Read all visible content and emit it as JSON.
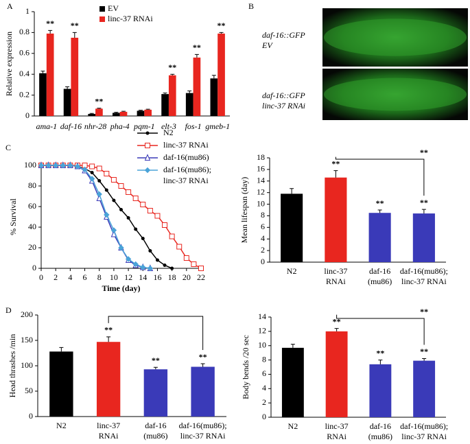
{
  "chart_data": [
    {
      "type": "bar",
      "panel": "A",
      "ylabel": "Relative expression",
      "categories": [
        "ama-1",
        "daf-16",
        "nhr-28",
        "pha-4",
        "pqm-1",
        "elt-3",
        "fos-1",
        "gmeb-1"
      ],
      "series": [
        {
          "name": "EV",
          "color": "#000000",
          "values": [
            0.41,
            0.26,
            0.02,
            0.03,
            0.05,
            0.21,
            0.22,
            0.36
          ],
          "errors": [
            0.02,
            0.02,
            0.005,
            0.005,
            0.005,
            0.01,
            0.02,
            0.03
          ],
          "significance": [
            null,
            null,
            null,
            null,
            null,
            null,
            null,
            null
          ]
        },
        {
          "name": "linc-37 RNAi",
          "color": "#e8261f",
          "values": [
            0.79,
            0.75,
            0.07,
            0.04,
            0.06,
            0.39,
            0.56,
            0.79
          ],
          "errors": [
            0.03,
            0.05,
            0.005,
            0.005,
            0.005,
            0.01,
            0.03,
            0.01
          ],
          "significance": [
            "**",
            "**",
            "**",
            null,
            null,
            "**",
            "**",
            "**"
          ]
        }
      ],
      "ylim": [
        0,
        1
      ],
      "yticks": [
        0,
        0.2,
        0.4,
        0.6,
        0.8,
        1
      ]
    },
    {
      "type": "image",
      "panel": "B",
      "images": [
        {
          "label": [
            "daf-16::GFP",
            "EV"
          ]
        },
        {
          "label": [
            "daf-16::GFP",
            "linc-37 RNAi"
          ]
        }
      ]
    },
    {
      "type": "line",
      "panel": "C",
      "xlabel": "Time (day)",
      "ylabel": "% Survival",
      "x": [
        0,
        1,
        2,
        3,
        4,
        5,
        6,
        7,
        8,
        9,
        10,
        11,
        12,
        13,
        14,
        15,
        16,
        17,
        18,
        19,
        20,
        21,
        22
      ],
      "series": [
        {
          "name": [
            "N2"
          ],
          "color": "#000000",
          "marker": "circle",
          "values": [
            100,
            100,
            100,
            100,
            100,
            99,
            97,
            93,
            85,
            76,
            66,
            57,
            49,
            38,
            29,
            17,
            8,
            3,
            0,
            null,
            null,
            null,
            null
          ]
        },
        {
          "name": [
            "linc-37 RNAi"
          ],
          "color": "#e8261f",
          "marker": "square",
          "values": [
            100,
            100,
            100,
            100,
            100,
            100,
            100,
            99,
            97,
            92,
            86,
            80,
            74,
            68,
            62,
            56,
            51,
            42,
            31,
            21,
            10,
            4,
            0
          ]
        },
        {
          "name": [
            "daf-16(mu86)"
          ],
          "color": "#3a3ab8",
          "marker": "triangle",
          "values": [
            100,
            100,
            100,
            100,
            100,
            99,
            95,
            85,
            68,
            50,
            33,
            20,
            8,
            3,
            1,
            0,
            null,
            null,
            null,
            null,
            null,
            null,
            null
          ]
        },
        {
          "name": [
            "daf-16(mu86);",
            "linc-37 RNAi"
          ],
          "color": "#4aa3d8",
          "marker": "diamond",
          "values": [
            100,
            100,
            100,
            100,
            100,
            99,
            96,
            87,
            72,
            52,
            37,
            20,
            9,
            4,
            1,
            0,
            null,
            null,
            null,
            null,
            null,
            null,
            null
          ]
        }
      ],
      "xlim": [
        0,
        22
      ],
      "xticks": [
        0,
        2,
        4,
        6,
        8,
        10,
        12,
        14,
        16,
        18,
        20,
        22
      ],
      "ylim": [
        0,
        100
      ],
      "yticks": [
        0,
        20,
        40,
        60,
        80,
        100
      ]
    },
    {
      "type": "bar",
      "ylabel": "Mean lifespan (day)",
      "categories": [
        [
          "N2"
        ],
        [
          "linc-37",
          "RNAi"
        ],
        [
          "daf-16",
          "(mu86)"
        ],
        [
          "daf-16(mu86);",
          "linc-37 RNAi"
        ]
      ],
      "values": [
        11.8,
        14.6,
        8.5,
        8.4
      ],
      "errors": [
        0.9,
        1.2,
        0.5,
        0.7
      ],
      "colors": [
        "#000000",
        "#e8261f",
        "#3a3ab8",
        "#3a3ab8"
      ],
      "significance": [
        null,
        "**",
        "**",
        "**"
      ],
      "bracket": true,
      "bracket_label": "**",
      "ylim": [
        0,
        18
      ],
      "yticks": [
        0,
        2,
        4,
        6,
        8,
        10,
        12,
        14,
        16,
        18
      ]
    },
    {
      "type": "bar",
      "panel": "D",
      "ylabel": "Head thrashes /min",
      "categories": [
        [
          "N2"
        ],
        [
          "linc-37",
          "RNAi"
        ],
        [
          "daf-16",
          "(mu86)"
        ],
        [
          "daf-16(mu86);",
          "linc-37 RNAi"
        ]
      ],
      "values": [
        128,
        147,
        93,
        98
      ],
      "errors": [
        8,
        10,
        4,
        6
      ],
      "colors": [
        "#000000",
        "#e8261f",
        "#3a3ab8",
        "#3a3ab8"
      ],
      "significance": [
        null,
        "**",
        "**",
        "**"
      ],
      "bracket": true,
      "ylim": [
        0,
        200
      ],
      "yticks": [
        0,
        50,
        100,
        150,
        200
      ]
    },
    {
      "type": "bar",
      "ylabel": "Body bends /20 sec",
      "categories": [
        [
          "N2"
        ],
        [
          "linc-37",
          "RNAi"
        ],
        [
          "daf-16",
          "(mu86)"
        ],
        [
          "daf-16(mu86);",
          "linc-37 RNAi"
        ]
      ],
      "values": [
        9.7,
        12.0,
        7.4,
        7.9
      ],
      "errors": [
        0.5,
        0.4,
        0.6,
        0.3
      ],
      "colors": [
        "#000000",
        "#e8261f",
        "#3a3ab8",
        "#3a3ab8"
      ],
      "significance": [
        null,
        "**",
        "**",
        "**"
      ],
      "bracket": true,
      "bracket_label": "**",
      "ylim": [
        0,
        14
      ],
      "yticks": [
        0,
        2,
        4,
        6,
        8,
        10,
        12,
        14
      ]
    }
  ]
}
